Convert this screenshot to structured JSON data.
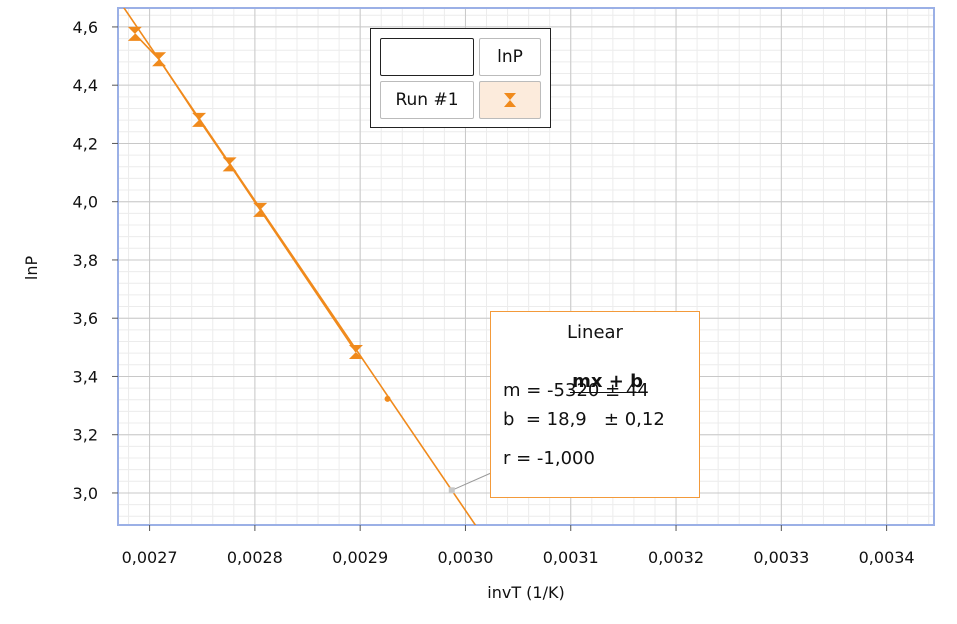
{
  "chart_data": {
    "type": "scatter",
    "xlabel": "invT (1/K)",
    "ylabel": "lnP",
    "xlim": [
      0.00267,
      0.003445
    ],
    "ylim": [
      2.89,
      4.665
    ],
    "x_ticks": [
      "0,0027",
      "0,0028",
      "0,0029",
      "0,0030",
      "0,0031",
      "0,0032",
      "0,0033",
      "0,0034"
    ],
    "x_tick_values": [
      0.0027,
      0.0028,
      0.0029,
      0.003,
      0.0031,
      0.0032,
      0.0033,
      0.0034
    ],
    "y_ticks": [
      "3,0",
      "3,2",
      "3,4",
      "3,6",
      "3,8",
      "4,0",
      "4,2",
      "4,4",
      "4,6"
    ],
    "y_tick_values": [
      3.0,
      3.2,
      3.4,
      3.6,
      3.8,
      4.0,
      4.2,
      4.4,
      4.6
    ],
    "grid": true,
    "series": [
      {
        "name": "Run #1",
        "color": "#f08a1c",
        "x": [
          0.002686,
          0.002709,
          0.002747,
          0.002776,
          0.002805,
          0.002896,
          0.002926
        ],
        "y": [
          4.576,
          4.489,
          4.281,
          4.128,
          3.972,
          3.484,
          3.323
        ]
      }
    ],
    "fit": {
      "type": "linear",
      "m": -5320,
      "b": 18.9,
      "x_marker": 0.002987,
      "color": "#f08a1c"
    },
    "legend": {
      "placement": "top-center",
      "column_header": "lnP",
      "row_label": "Run #1"
    },
    "fit_box": {
      "title": "Linear",
      "equation": "mx + b",
      "m_line": "m = -5320 ± 44",
      "b_line": "b  = 18,9   ± 0,12",
      "r_line": "r = -1,000"
    }
  }
}
